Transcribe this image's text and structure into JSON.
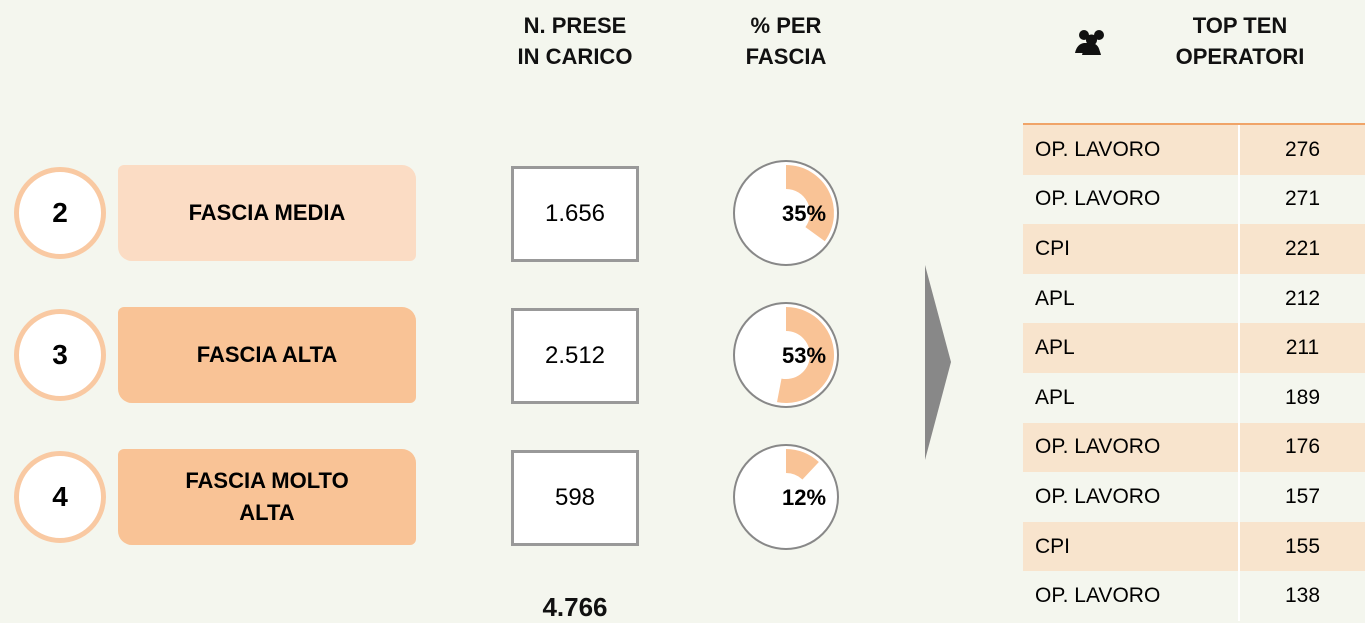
{
  "headers": {
    "count": [
      "N. PRESE",
      "IN CARICO"
    ],
    "percent": [
      "% PER",
      "FASCIA"
    ],
    "top": [
      "TOP TEN",
      "OPERATORI"
    ]
  },
  "rows": [
    {
      "rank": "2",
      "label": "FASCIA MEDIA",
      "count": "1.656",
      "percent": 35,
      "percent_label": "35%",
      "color": "#fbdcc4"
    },
    {
      "rank": "3",
      "label": "FASCIA ALTA",
      "count": "2.512",
      "percent": 53,
      "percent_label": "53%",
      "color": "#f9c396"
    },
    {
      "rank": "4",
      "label": "FASCIA MOLTO ALTA",
      "count": "598",
      "percent": 12,
      "percent_label": "12%",
      "color": "#f9c396"
    }
  ],
  "total": "4.766",
  "table": {
    "rows": [
      [
        "OP. LAVORO",
        276
      ],
      [
        "OP. LAVORO",
        271
      ],
      [
        "CPI",
        221
      ],
      [
        "APL",
        212
      ],
      [
        "APL",
        211
      ],
      [
        "APL",
        189
      ],
      [
        "OP. LAVORO",
        176
      ],
      [
        "OP. LAVORO",
        157
      ],
      [
        "CPI",
        155
      ],
      [
        "OP. LAVORO",
        138
      ]
    ]
  }
}
